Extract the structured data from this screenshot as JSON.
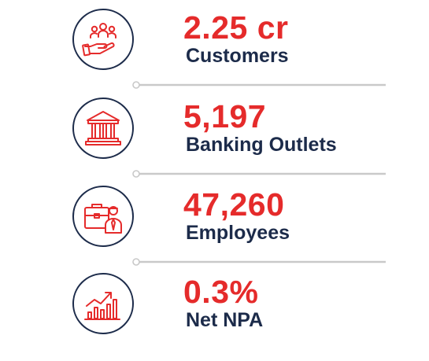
{
  "colors": {
    "accent": "#e52b2b",
    "navy": "#1c2b4a",
    "connector": "#c9c9c9"
  },
  "stats": [
    {
      "value": "2.25 cr",
      "label": "Customers",
      "icon": "customers-hand-icon"
    },
    {
      "value": "5,197",
      "label": "Banking Outlets",
      "icon": "bank-building-icon"
    },
    {
      "value": "47,260",
      "label": "Employees",
      "icon": "employee-briefcase-icon"
    },
    {
      "value": "0.3%",
      "label": "Net NPA",
      "icon": "growth-chart-icon"
    }
  ]
}
